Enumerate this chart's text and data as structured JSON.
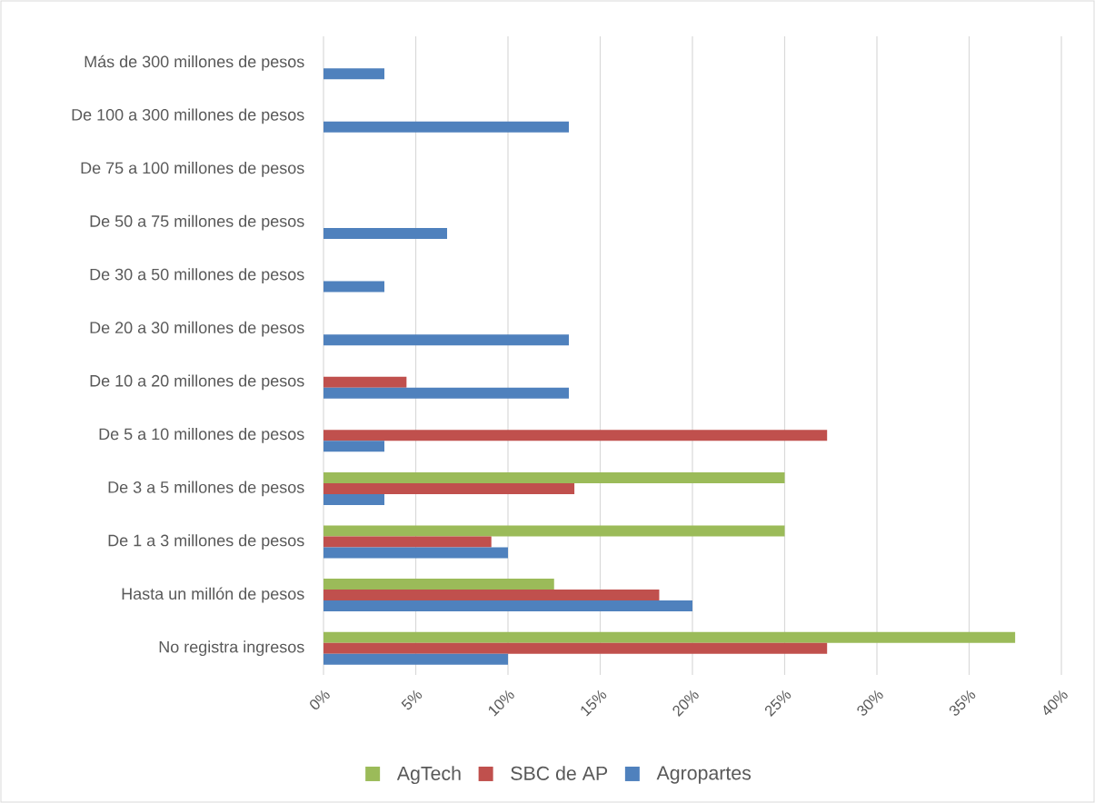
{
  "chart_data": {
    "type": "bar",
    "orientation": "horizontal",
    "categories": [
      "Más de 300 millones de pesos",
      "De 100 a 300 millones de pesos",
      "De 75 a 100 millones de pesos",
      "De 50 a 75 millones de pesos",
      "De 30 a 50 millones de pesos",
      "De 20 a 30 millones de pesos",
      "De 10 a 20 millones de pesos",
      "De 5 a 10 millones de pesos",
      "De 3 a 5 millones de pesos",
      "De 1 a 3 millones de pesos",
      "Hasta un millón de pesos",
      "No registra ingresos"
    ],
    "series": [
      {
        "name": "AgTech",
        "color": "#9bbb59",
        "values": [
          null,
          null,
          null,
          null,
          null,
          null,
          null,
          null,
          25,
          25,
          12.5,
          37.5
        ]
      },
      {
        "name": "SBC de AP",
        "color": "#c0504d",
        "values": [
          null,
          null,
          null,
          null,
          null,
          null,
          4.5,
          27.3,
          13.6,
          9.1,
          18.2,
          27.3
        ]
      },
      {
        "name": "Agropartes",
        "color": "#4f81bd",
        "values": [
          3.3,
          13.3,
          null,
          6.7,
          3.3,
          13.3,
          13.3,
          3.3,
          3.3,
          10,
          20,
          10
        ]
      }
    ],
    "xlim": [
      0,
      40
    ],
    "xticks": [
      {
        "value": 0,
        "label": "0%"
      },
      {
        "value": 5,
        "label": "5%"
      },
      {
        "value": 10,
        "label": "10%"
      },
      {
        "value": 15,
        "label": "15%"
      },
      {
        "value": 20,
        "label": "20%"
      },
      {
        "value": 25,
        "label": "25%"
      },
      {
        "value": 30,
        "label": "30%"
      },
      {
        "value": 35,
        "label": "35%"
      },
      {
        "value": 40,
        "label": "40%"
      }
    ],
    "grid": "x",
    "legend": "bottom"
  }
}
